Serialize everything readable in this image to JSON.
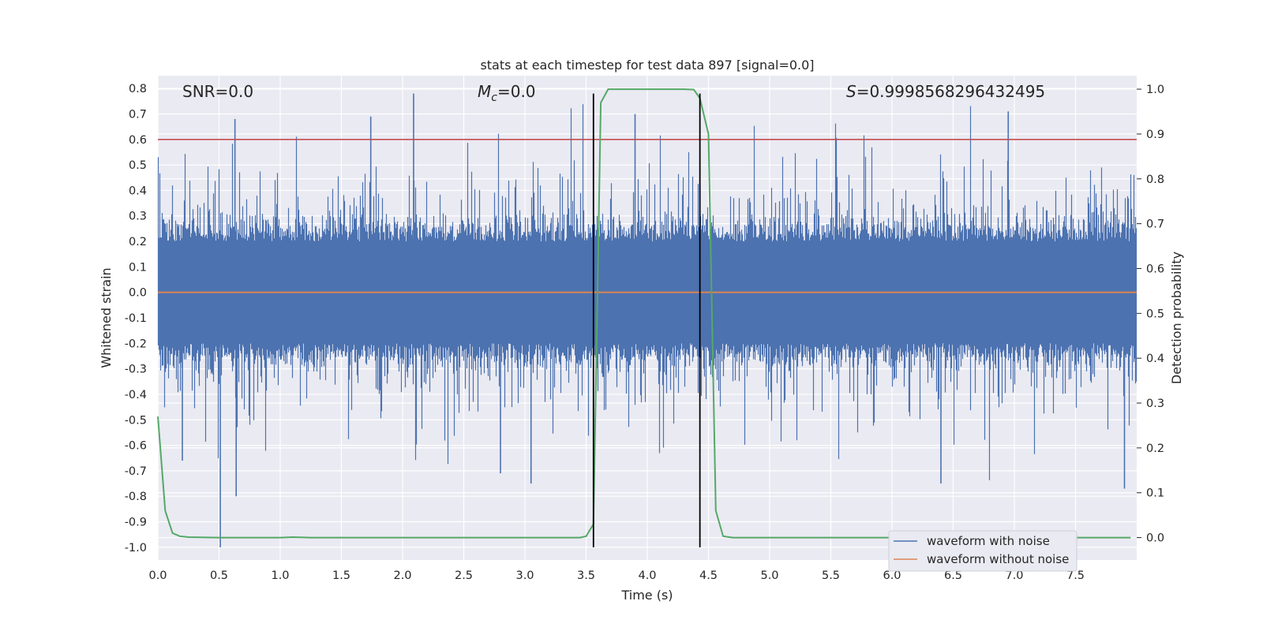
{
  "chart_data": {
    "type": "line",
    "title": "stats at each timestep for test data 897 [signal=0.0]",
    "xlabel": "Time (s)",
    "ylabel_left": "Whitened strain",
    "ylabel_right": "Detection probability",
    "xlim": [
      0.0,
      8.0
    ],
    "ylim_left": [
      -1.05,
      0.85
    ],
    "ylim_right": [
      -0.05,
      1.03
    ],
    "x_ticks": [
      "0.0",
      "0.5",
      "1.0",
      "1.5",
      "2.0",
      "2.5",
      "3.0",
      "3.5",
      "4.0",
      "4.5",
      "5.0",
      "5.5",
      "6.0",
      "6.5",
      "7.0",
      "7.5"
    ],
    "y_left_ticks": [
      "0.8",
      "0.7",
      "0.6",
      "0.5",
      "0.4",
      "0.3",
      "0.2",
      "0.1",
      "0.0",
      "-0.1",
      "-0.2",
      "-0.3",
      "-0.4",
      "-0.5",
      "-0.6",
      "-0.7",
      "-0.8",
      "-0.9",
      "-1.0"
    ],
    "y_right_ticks": [
      "1.0",
      "0.9",
      "0.8",
      "0.7",
      "0.6",
      "0.5",
      "0.4",
      "0.3",
      "0.2",
      "0.1",
      "0.0"
    ],
    "grid": true,
    "legend_position": "bottom-right",
    "annotations": {
      "snr": "SNR=0.0",
      "mc_symbol": "M",
      "mc_subscript": "c",
      "mc_value": "=0.0",
      "s_symbol": "S",
      "s_value": "=0.9998568296432495"
    },
    "series": [
      {
        "name": "waveform with noise",
        "color": "#4c72b0",
        "axis": "left",
        "description_values": "white noise, range approx -1.0 to 0.78",
        "noise_std": 0.14,
        "extremes": [
          [
            0.51,
            -1.0
          ],
          [
            0.64,
            -0.8
          ],
          [
            2.09,
            0.78
          ],
          [
            0.2,
            -0.66
          ],
          [
            2.8,
            -0.71
          ],
          [
            3.05,
            -0.75
          ],
          [
            6.4,
            -0.75
          ],
          [
            7.9,
            -0.77
          ],
          [
            0.63,
            0.68
          ],
          [
            1.74,
            0.69
          ],
          [
            3.9,
            0.7
          ],
          [
            6.95,
            0.71
          ]
        ]
      },
      {
        "name": "waveform without noise",
        "color": "#dd8452",
        "axis": "left",
        "x": [
          0.0,
          8.0
        ],
        "y": [
          0.0,
          0.0
        ]
      },
      {
        "name": "detection probability",
        "color": "#55a868",
        "axis": "right",
        "x": [
          0.0,
          0.06,
          0.12,
          0.18,
          0.25,
          0.5,
          1.0,
          1.1,
          1.25,
          2.0,
          3.0,
          3.45,
          3.5,
          3.56,
          3.62,
          3.68,
          3.75,
          4.0,
          4.3,
          4.38,
          4.43,
          4.5,
          4.56,
          4.62,
          4.7,
          5.0,
          6.0,
          7.0,
          7.95
        ],
        "y": [
          0.27,
          0.06,
          0.01,
          0.003,
          0.001,
          0.0,
          0.0,
          0.001,
          0.0,
          0.0,
          0.0,
          0.0,
          0.003,
          0.03,
          0.97,
          1.0,
          1.0,
          1.0,
          1.0,
          0.999,
          0.98,
          0.9,
          0.06,
          0.003,
          0.0,
          0.0,
          0.0,
          0.0,
          0.0
        ]
      }
    ],
    "threshold_line": {
      "color": "#c44e52",
      "y": 0.6,
      "axis": "left"
    },
    "detection_window": {
      "color": "#000000",
      "x_start": 3.56,
      "x_end": 4.43,
      "y_top": 0.78,
      "y_bottom": -1.0
    }
  }
}
